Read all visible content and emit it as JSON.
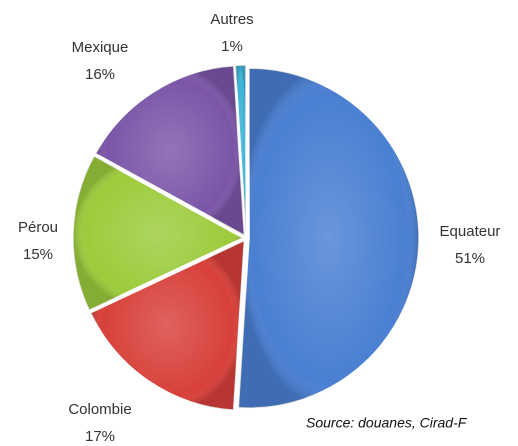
{
  "chart_data": {
    "type": "pie",
    "categories": [
      "Equateur",
      "Colombie",
      "Pérou",
      "Mexique",
      "Autres"
    ],
    "values": [
      51,
      17,
      15,
      16,
      1
    ],
    "value_labels": [
      "51%",
      "17%",
      "15%",
      "16%",
      "1%"
    ],
    "colors": [
      "#4a7fd2",
      "#d8403a",
      "#9dcb3c",
      "#7b56a8",
      "#3db3d6"
    ],
    "annotation": "Source: douanes, Cirad-F"
  }
}
